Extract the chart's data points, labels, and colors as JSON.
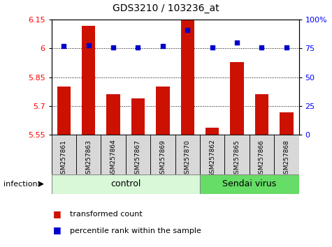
{
  "title": "GDS3210 / 103236_at",
  "samples": [
    "GSM257861",
    "GSM257863",
    "GSM257864",
    "GSM257867",
    "GSM257869",
    "GSM257870",
    "GSM257862",
    "GSM257865",
    "GSM257866",
    "GSM257868"
  ],
  "transformed_counts": [
    5.8,
    6.12,
    5.76,
    5.74,
    5.8,
    6.148,
    5.585,
    5.93,
    5.76,
    5.665
  ],
  "percentile_ranks": [
    77,
    78,
    76,
    76,
    77,
    91,
    76,
    80,
    76,
    76
  ],
  "groups": [
    "control",
    "control",
    "control",
    "control",
    "control",
    "control",
    "Sendai virus",
    "Sendai virus",
    "Sendai virus",
    "Sendai virus"
  ],
  "ylim_left": [
    5.55,
    6.15
  ],
  "ylim_right": [
    0,
    100
  ],
  "yticks_left": [
    5.55,
    5.7,
    5.85,
    6.0,
    6.15
  ],
  "yticks_right": [
    0,
    25,
    50,
    75,
    100
  ],
  "ytick_labels_left": [
    "5.55",
    "5.7",
    "5.85",
    "6",
    "6.15"
  ],
  "ytick_labels_right": [
    "0",
    "25",
    "50",
    "75",
    "100%"
  ],
  "hlines": [
    5.7,
    5.85,
    6.0
  ],
  "bar_color": "#cc1100",
  "dot_color": "#0000cc",
  "bar_width": 0.55,
  "group_label": "infection",
  "group_colors": {
    "control": "#d8f8d8",
    "Sendai virus": "#66dd66"
  },
  "legend_items": [
    {
      "label": "transformed count",
      "color": "#cc1100"
    },
    {
      "label": "percentile rank within the sample",
      "color": "#0000cc"
    }
  ],
  "control_count": 6,
  "sendai_count": 4
}
